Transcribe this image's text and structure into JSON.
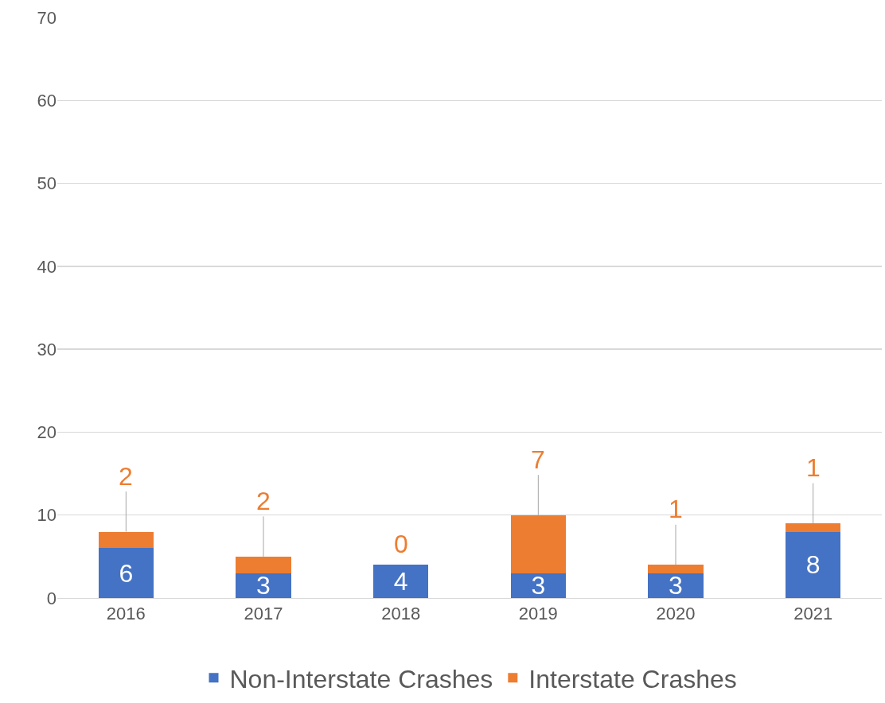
{
  "chart_data": {
    "type": "bar",
    "stacked": true,
    "categories": [
      "2016",
      "2017",
      "2018",
      "2019",
      "2020",
      "2021"
    ],
    "series": [
      {
        "name": "Non-Interstate Crashes",
        "color": "#4472c4",
        "values": [
          6,
          3,
          4,
          3,
          3,
          8
        ]
      },
      {
        "name": "Interstate Crashes",
        "color": "#ed7d31",
        "values": [
          2,
          2,
          0,
          7,
          1,
          1
        ]
      }
    ],
    "ylim": [
      0,
      70
    ],
    "yticks": [
      0,
      10,
      20,
      30,
      40,
      50,
      60,
      70
    ],
    "grid": "y",
    "legend": "bottom",
    "data_labels": true
  }
}
